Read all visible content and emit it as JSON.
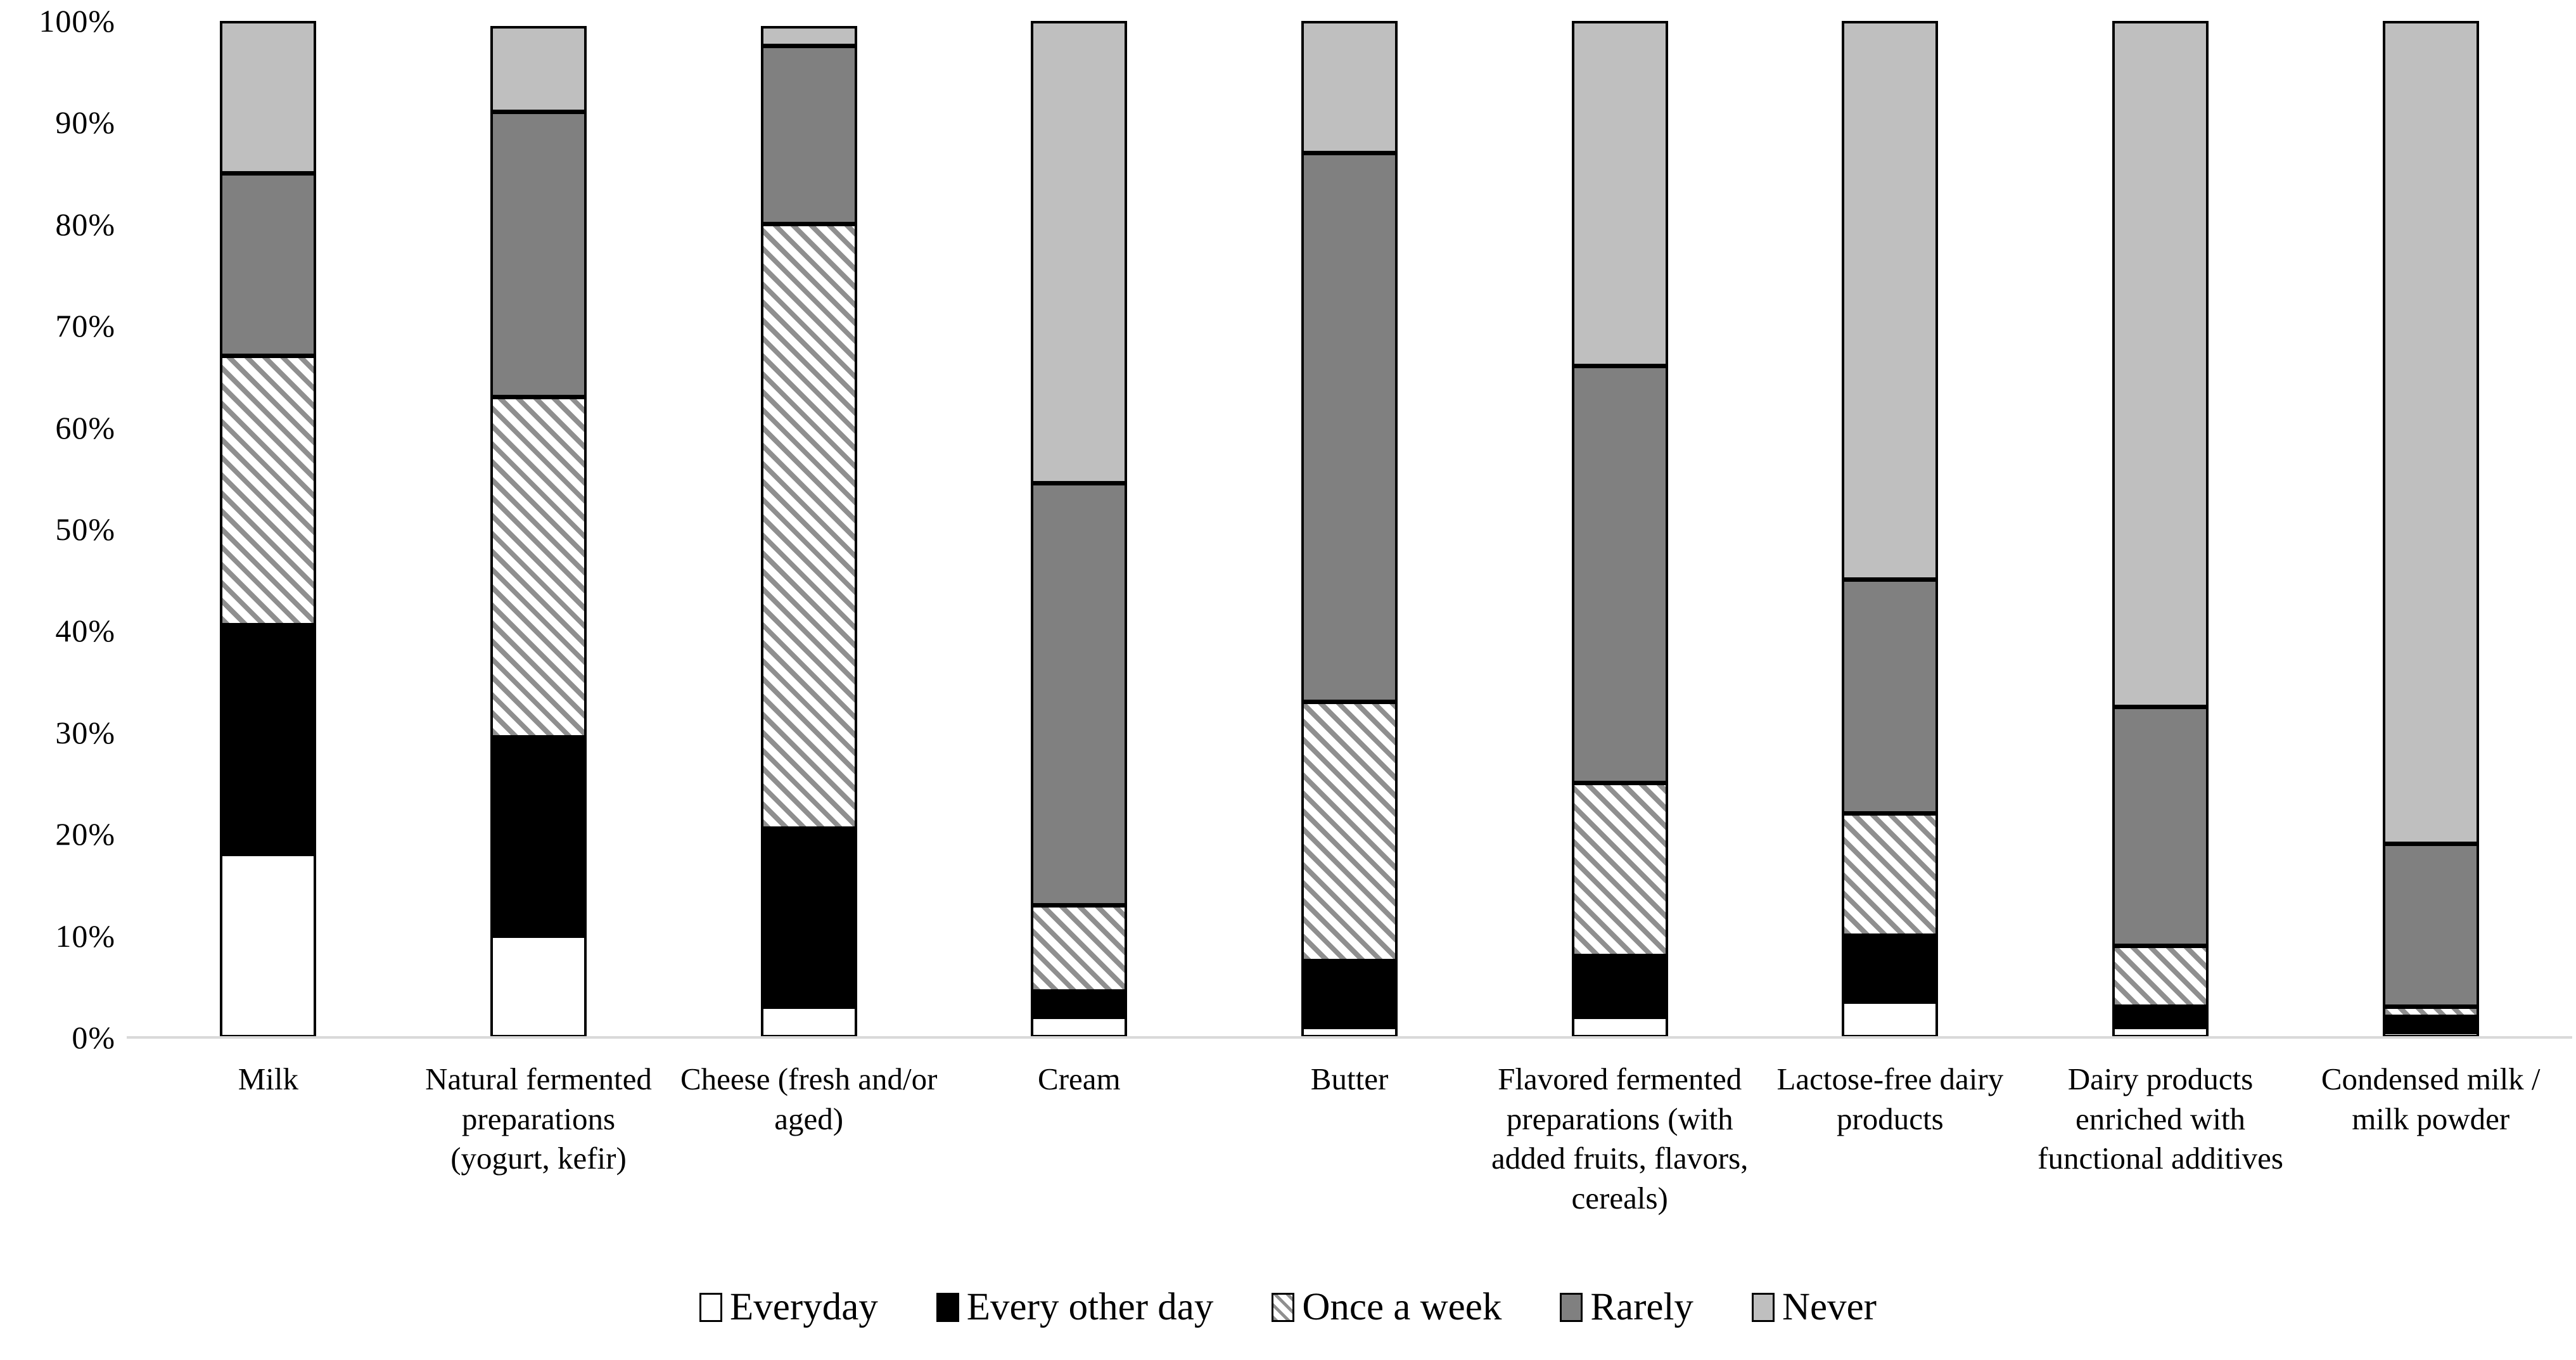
{
  "colors": {
    "everyday": "#ffffff",
    "every_other_day": "#000000",
    "once_a_week_stripe": "#8f8f8f",
    "rarely": "#808080",
    "never": "#bfbfbf",
    "segment_border": "#000000",
    "axis_line": "#d9d9d9",
    "background": "#ffffff"
  },
  "chart_data": {
    "type": "bar",
    "variant": "stacked-percent-column",
    "title": "",
    "xlabel": "",
    "ylabel": "",
    "ylim": [
      0,
      100
    ],
    "grid": false,
    "legend_position": "bottom",
    "yticks": [
      "0%",
      "10%",
      "20%",
      "30%",
      "40%",
      "50%",
      "60%",
      "70%",
      "80%",
      "90%",
      "100%"
    ],
    "ytick_values": [
      0,
      10,
      20,
      30,
      40,
      50,
      60,
      70,
      80,
      90,
      100
    ],
    "categories": [
      "Milk",
      "Natural fermented preparations (yogurt, kefir)",
      "Cheese (fresh and/or aged)",
      "Cream",
      "Butter",
      "Flavored fermented preparations (with added fruits, flavors, cereals)",
      "Lactose-free dairy products",
      "Dairy products enriched with functional additives",
      "Condensed milk / milk powder"
    ],
    "series": [
      {
        "name": "Everyday",
        "style": "white",
        "values": [
          18,
          10,
          3,
          2,
          1,
          2,
          3.5,
          1,
          0.5
        ]
      },
      {
        "name": "Every other day",
        "style": "black",
        "values": [
          22.5,
          19.5,
          17.5,
          2.5,
          6.5,
          6,
          6.5,
          2,
          1.5
        ]
      },
      {
        "name": "Once a week",
        "style": "hatch",
        "values": [
          26.5,
          33.5,
          59.5,
          8.5,
          25.5,
          17,
          12,
          6,
          1
        ]
      },
      {
        "name": "Rarely",
        "style": "darkgray",
        "values": [
          18,
          28,
          17.5,
          41.5,
          54,
          41,
          23,
          23.5,
          16
        ]
      },
      {
        "name": "Never",
        "style": "lightgray",
        "values": [
          15,
          8.5,
          2,
          45.5,
          13,
          34,
          55,
          67.5,
          81
        ]
      }
    ]
  }
}
